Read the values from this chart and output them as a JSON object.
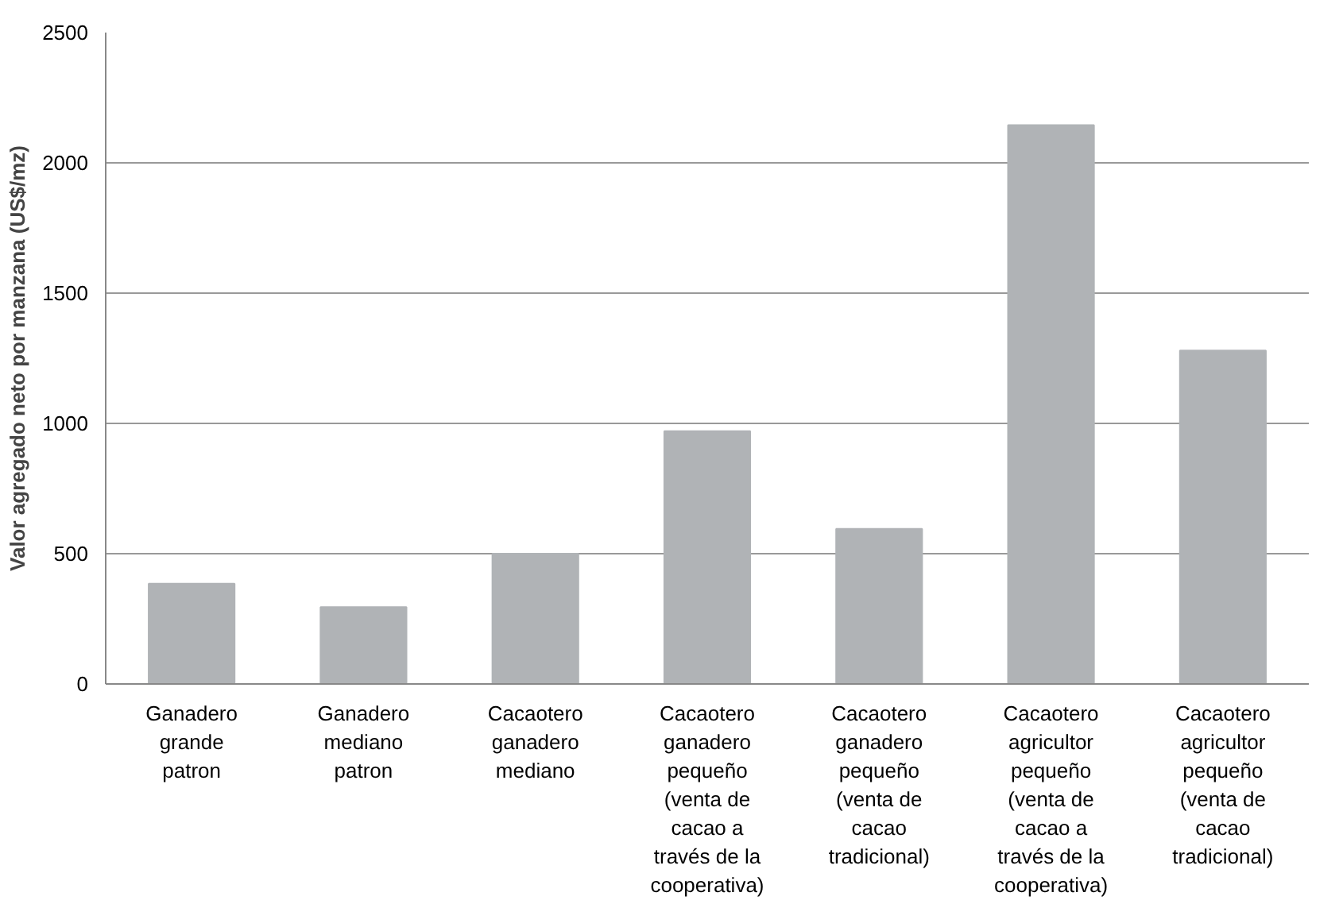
{
  "chart_data": {
    "type": "bar",
    "ylabel": "Valor agregado neto por manzana (US$/mz)",
    "categories": [
      "Ganadero grande patron",
      "Ganadero mediano patron",
      "Cacaotero ganadero mediano",
      "Cacaotero ganadero pequeño (venta de cacao a través de la cooperativa)",
      "Cacaotero ganadero pequeño (venta de cacao tradicional)",
      "Cacaotero agricultor pequeño (venta de cacao a través de la cooperativa)",
      "Cacaotero agricultor pequeño (venta de cacao tradicional)"
    ],
    "values": [
      385,
      295,
      500,
      970,
      595,
      2145,
      1280
    ],
    "color": "#b0b3b6",
    "ylim": [
      0,
      2500
    ],
    "yticks": [
      0,
      500,
      1000,
      1500,
      2000,
      2500
    ],
    "grid": "y"
  }
}
